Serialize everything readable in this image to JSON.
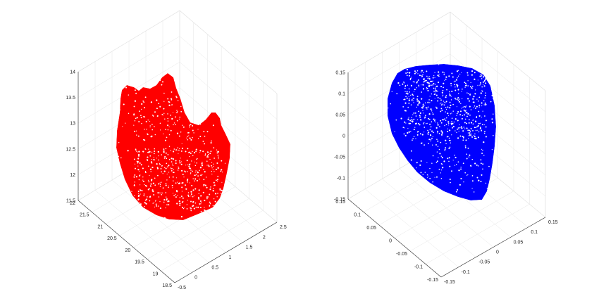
{
  "chart_data": [
    {
      "type": "scatter3d",
      "marker_color": "#ff0000",
      "shape": "tooth-with-cusps",
      "title": "",
      "xlabel": "",
      "ylabel": "",
      "zlabel": "",
      "x_ticks": [
        "-0.5",
        "0",
        "0.5",
        "1",
        "1.5",
        "2",
        "2.5"
      ],
      "xlim": [
        -0.5,
        2.5
      ],
      "y_ticks": [
        "18.5",
        "19",
        "19.5",
        "20",
        "20.5",
        "21",
        "21.5",
        "22"
      ],
      "ylim": [
        18.5,
        22
      ],
      "z_ticks": [
        "11.5",
        "12",
        "12.5",
        "13",
        "13.5",
        "14"
      ],
      "zlim": [
        11.5,
        14
      ],
      "grid": true
    },
    {
      "type": "scatter3d",
      "marker_color": "#0000ff",
      "shape": "normalized-rounded-blob",
      "title": "",
      "xlabel": "",
      "ylabel": "",
      "zlabel": "",
      "x_ticks": [
        "-0.15",
        "-0.1",
        "-0.05",
        "0",
        "0.05",
        "0.1",
        "0.15"
      ],
      "xlim": [
        -0.15,
        0.15
      ],
      "y_ticks": [
        "-0.15",
        "-0.1",
        "-0.05",
        "0",
        "0.05",
        "0.1",
        "0.15"
      ],
      "ylim": [
        -0.15,
        0.15
      ],
      "z_ticks": [
        "-0.15",
        "-0.1",
        "-0.05",
        "0",
        "0.05",
        "0.1",
        "0.15"
      ],
      "zlim": [
        -0.15,
        0.15
      ],
      "grid": true
    }
  ]
}
